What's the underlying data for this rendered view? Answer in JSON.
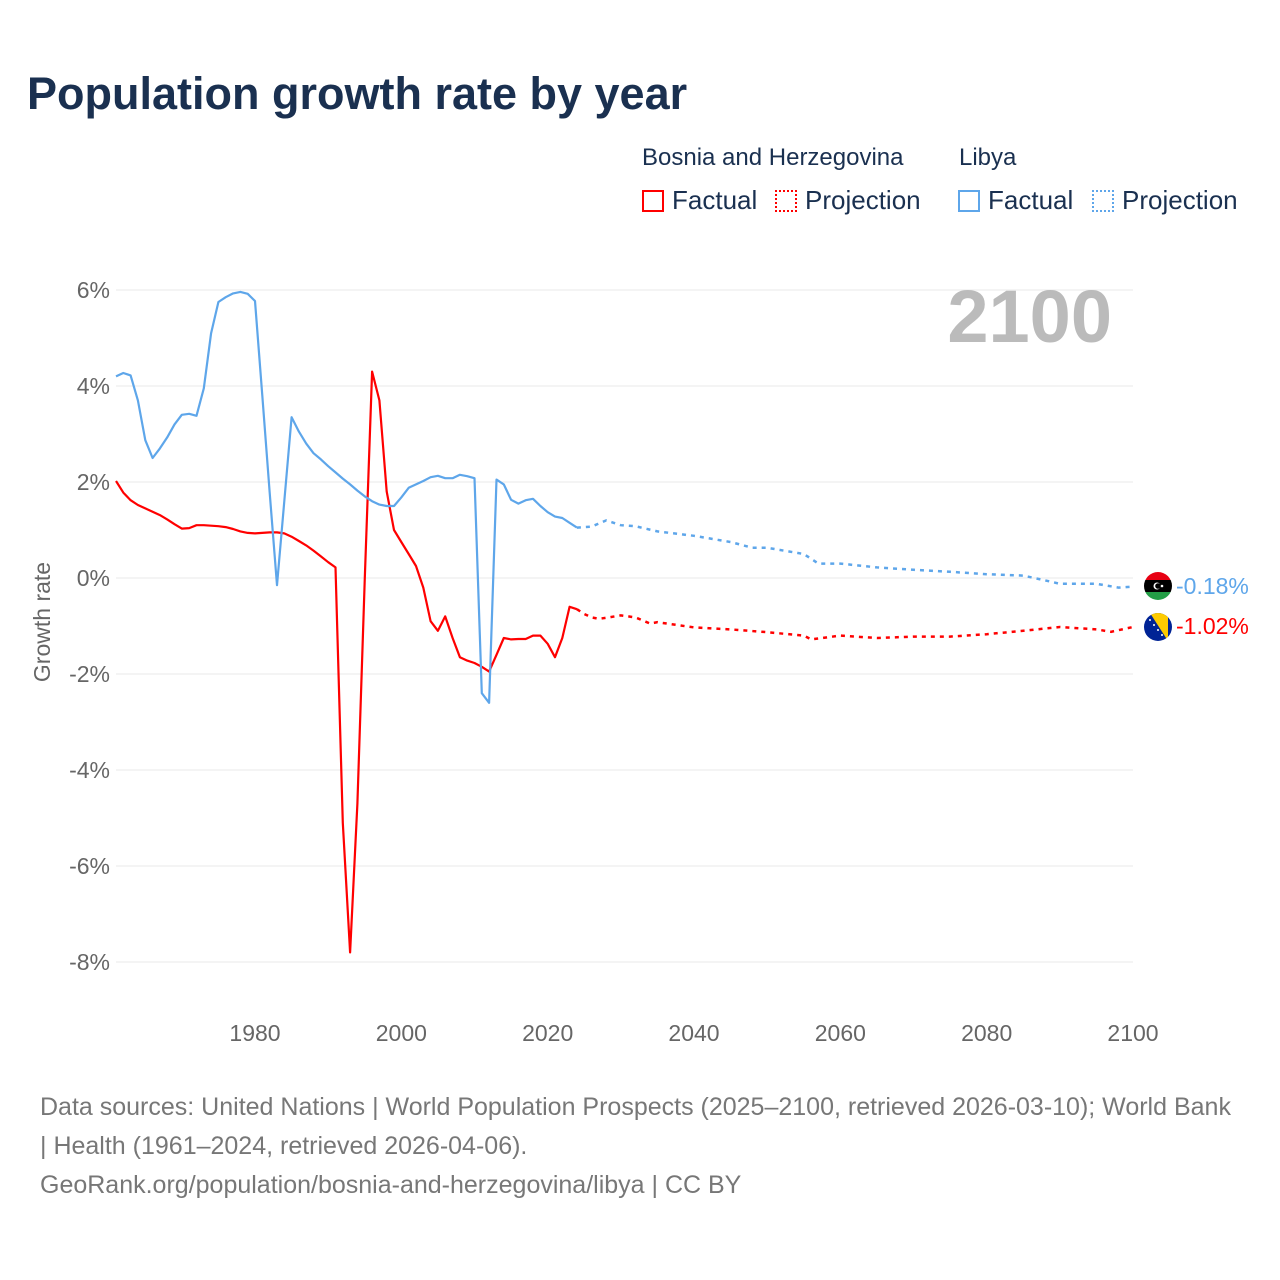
{
  "title": "Population growth rate by year",
  "legend": {
    "groups": [
      {
        "name": "Bosnia and Herzegovina",
        "factual": "Factual",
        "projection": "Projection",
        "color": "#ff0000"
      },
      {
        "name": "Libya",
        "factual": "Factual",
        "projection": "Projection",
        "color": "#5ea6ea"
      }
    ]
  },
  "year_label": "2100",
  "footer": {
    "sources": "Data sources: United Nations | World Population Prospects (2025–2100, retrieved 2026-03-10); World Bank | Health (1961–2024, retrieved 2026-04-06).",
    "link": "GeoRank.org/population/bosnia-and-herzegovina/libya | CC BY"
  },
  "chart_data": {
    "type": "line",
    "ylabel": "Growth rate",
    "xlim": [
      1961,
      2100
    ],
    "ylim": [
      -9,
      6.6
    ],
    "xticks": [
      1980,
      2000,
      2020,
      2040,
      2060,
      2080,
      2100
    ],
    "xtick_labels": [
      "1980",
      "2000",
      "2020",
      "2040",
      "2060",
      "2080",
      "2100"
    ],
    "yticks": [
      6,
      4,
      2,
      0,
      -2,
      -4,
      -6,
      -8
    ],
    "ytick_labels": [
      "6%",
      "4%",
      "2%",
      "0%",
      "-2%",
      "-4%",
      "-6%",
      "-8%"
    ],
    "grid": true,
    "series": [
      {
        "name": "Libya",
        "color": "#5ea6ea",
        "end_label": "-0.18%",
        "factual": {
          "x_start": 1961,
          "values": [
            4.2,
            4.27,
            4.22,
            3.7,
            2.87,
            2.5,
            2.7,
            2.93,
            3.2,
            3.4,
            3.42,
            3.38,
            3.95,
            5.1,
            5.75,
            5.85,
            5.93,
            5.96,
            5.92,
            5.77,
            3.8,
            1.8,
            -0.15,
            1.6,
            3.35,
            3.05,
            2.8,
            2.6,
            2.47,
            2.33,
            2.2,
            2.07,
            1.95,
            1.82,
            1.7,
            1.6,
            1.53,
            1.5,
            1.5,
            1.68,
            1.88,
            1.95,
            2.02,
            2.1,
            2.13,
            2.08,
            2.08,
            2.15,
            2.12,
            2.08,
            -2.4,
            -2.6,
            2.05,
            1.95,
            1.63,
            1.55,
            1.62,
            1.65,
            1.5,
            1.37,
            1.28,
            1.25,
            1.15,
            1.05
          ]
        },
        "projection": {
          "x": [
            2024,
            2026,
            2028,
            2030,
            2032,
            2035,
            2040,
            2045,
            2048,
            2050,
            2055,
            2057,
            2060,
            2065,
            2070,
            2075,
            2080,
            2085,
            2088,
            2090,
            2093,
            2095,
            2098,
            2100
          ],
          "values": [
            1.05,
            1.07,
            1.2,
            1.1,
            1.08,
            0.97,
            0.88,
            0.75,
            0.63,
            0.63,
            0.5,
            0.3,
            0.3,
            0.22,
            0.17,
            0.13,
            0.08,
            0.05,
            -0.05,
            -0.12,
            -0.12,
            -0.12,
            -0.2,
            -0.18
          ]
        }
      },
      {
        "name": "Bosnia and Herzegovina",
        "color": "#ff0000",
        "end_label": "-1.02%",
        "factual": {
          "x_start": 1961,
          "values": [
            2.02,
            1.78,
            1.62,
            1.52,
            1.45,
            1.38,
            1.31,
            1.22,
            1.12,
            1.03,
            1.04,
            1.1,
            1.1,
            1.09,
            1.08,
            1.06,
            1.02,
            0.97,
            0.94,
            0.93,
            0.94,
            0.95,
            0.95,
            0.93,
            0.86,
            0.77,
            0.68,
            0.57,
            0.45,
            0.33,
            0.22,
            -5.1,
            -7.8,
            -4.7,
            0,
            4.3,
            3.7,
            1.8,
            1.0,
            0.75,
            0.5,
            0.25,
            -0.2,
            -0.9,
            -1.1,
            -0.8,
            -1.25,
            -1.65,
            -1.72,
            -1.77,
            -1.85,
            -1.95,
            -1.6,
            -1.25,
            -1.28,
            -1.27,
            -1.27,
            -1.2,
            -1.2,
            -1.37,
            -1.65,
            -1.25,
            -0.6,
            -0.65
          ]
        },
        "projection": {
          "x": [
            2024,
            2025,
            2026,
            2027,
            2028,
            2030,
            2032,
            2034,
            2035,
            2040,
            2045,
            2050,
            2055,
            2056,
            2060,
            2065,
            2070,
            2075,
            2080,
            2085,
            2090,
            2095,
            2097,
            2100
          ],
          "values": [
            -0.65,
            -0.75,
            -0.82,
            -0.85,
            -0.83,
            -0.78,
            -0.82,
            -0.95,
            -0.92,
            -1.03,
            -1.07,
            -1.13,
            -1.2,
            -1.28,
            -1.2,
            -1.25,
            -1.22,
            -1.22,
            -1.17,
            -1.1,
            -1.02,
            -1.07,
            -1.12,
            -1.02
          ]
        }
      }
    ]
  }
}
